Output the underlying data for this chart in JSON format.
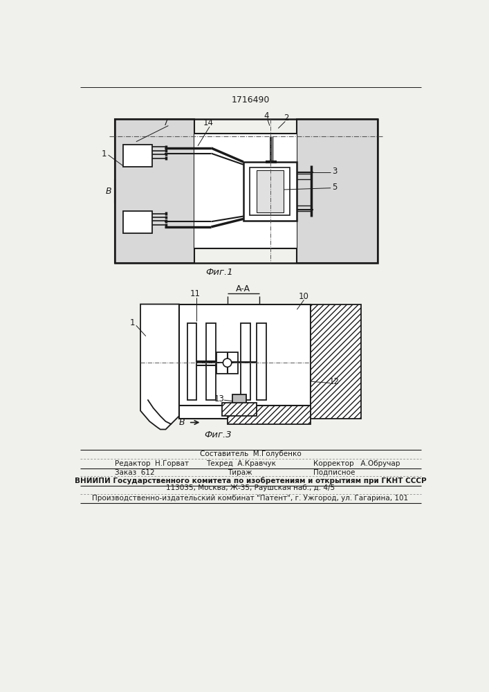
{
  "patent_number": "1716490",
  "bg_color": "#f0f0ec",
  "line_color": "#1a1a1a",
  "fig1_caption": "Фиг.1",
  "fig3_caption": "Фиг.3"
}
